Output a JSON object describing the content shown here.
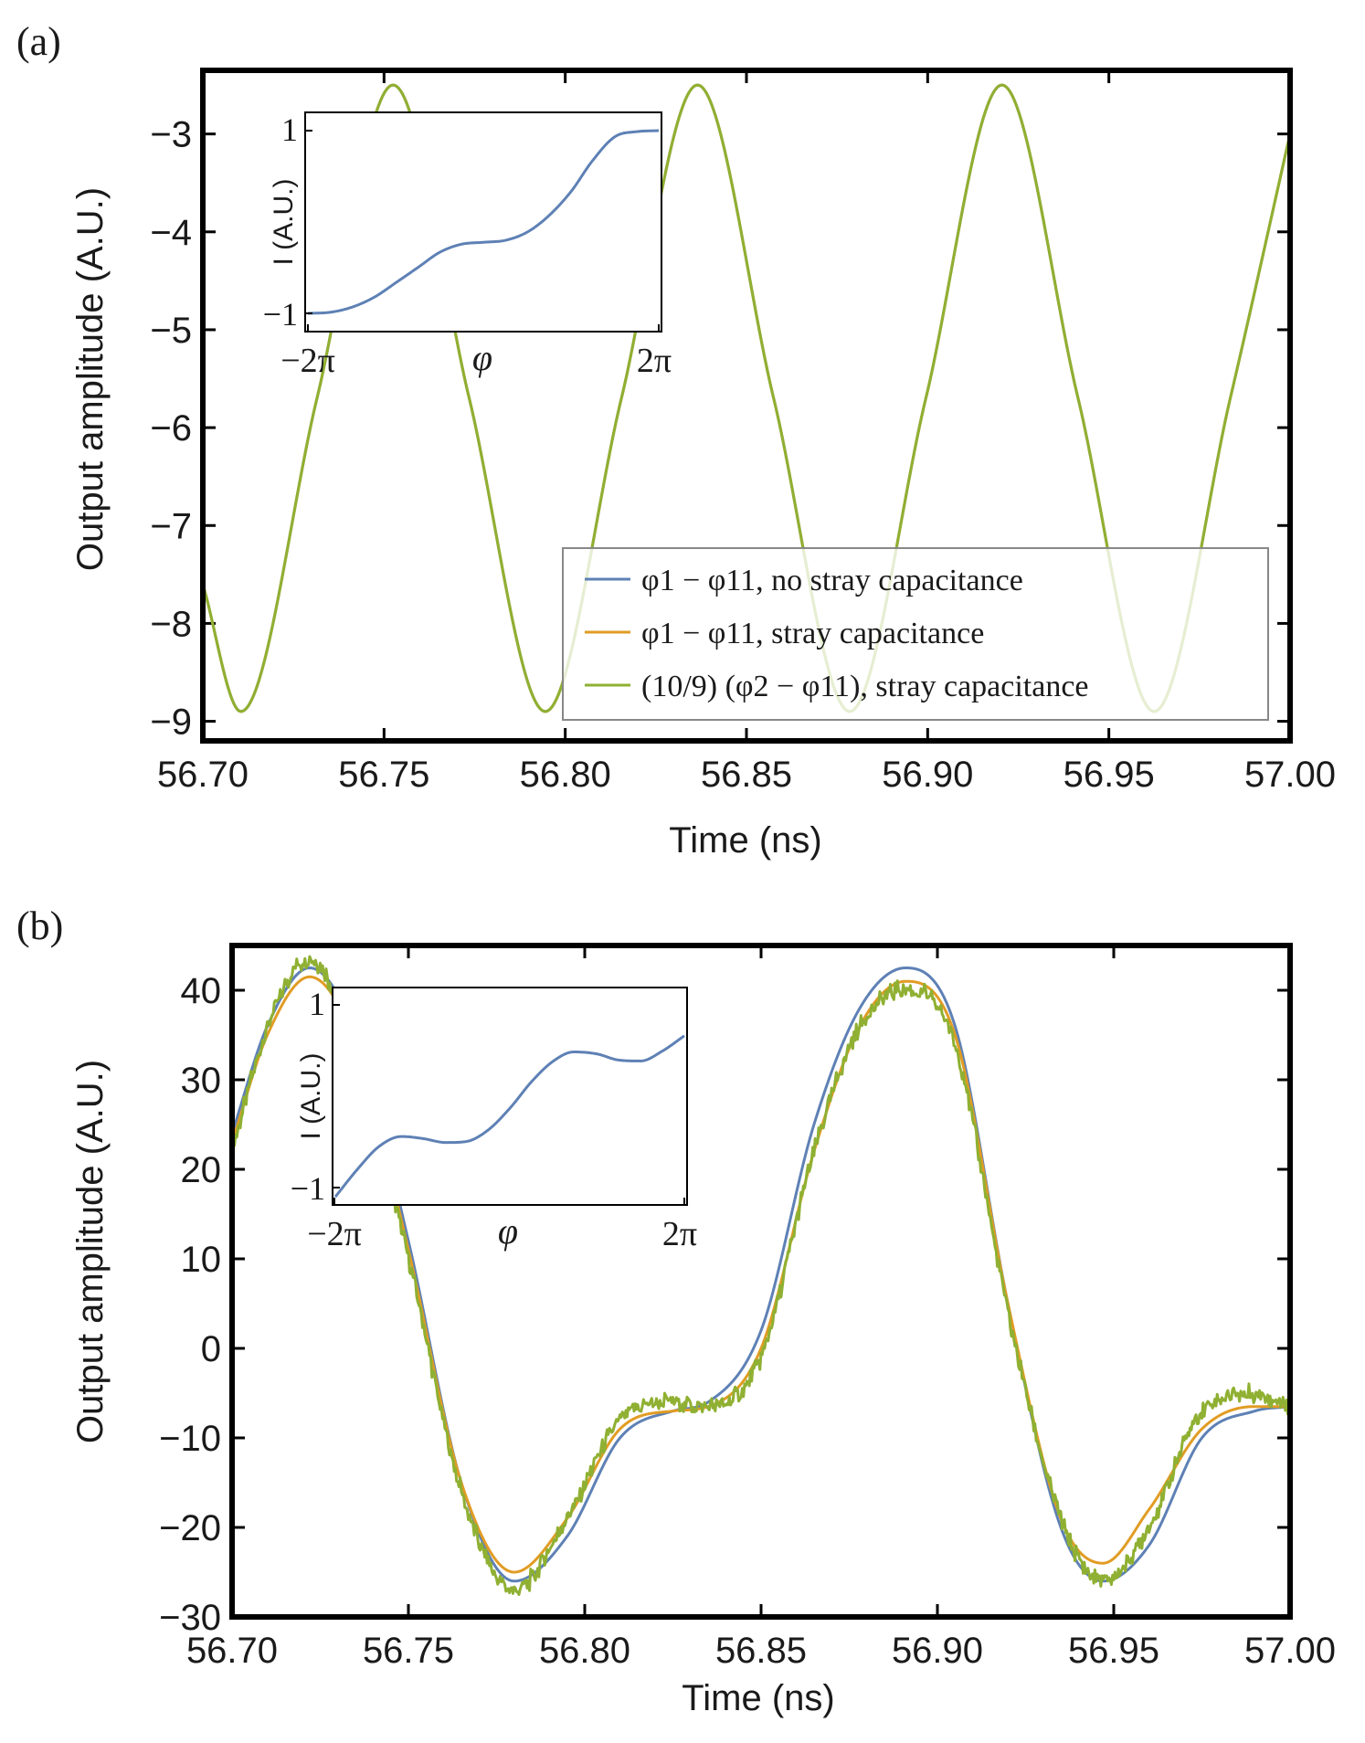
{
  "chart_data": [
    {
      "panel_label": "(a)",
      "type": "line",
      "title": "",
      "xlabel": "Time (ns)",
      "ylabel": "Output amplitude (A.U.)",
      "xlim": [
        56.7,
        57.0
      ],
      "ylim": [
        -9.2,
        -2.35
      ],
      "xticks": [
        56.7,
        56.75,
        56.8,
        56.85,
        56.9,
        56.95,
        57.0
      ],
      "xtick_labels": [
        "56.70",
        "56.75",
        "56.80",
        "56.85",
        "56.90",
        "56.95",
        "57.00"
      ],
      "yticks": [
        -9,
        -8,
        -7,
        -6,
        -5,
        -4,
        -3
      ],
      "ytick_labels": [
        "−9",
        "−8",
        "−7",
        "−6",
        "−5",
        "−4",
        "−3"
      ],
      "grid": false,
      "legend_position": "bottom-right",
      "series": [
        {
          "name": "φ1 − φ11, no stray capacitance",
          "color": "#5e81b5",
          "x": [
            56.7,
            56.7105,
            56.7315,
            56.7525,
            56.7735,
            56.7945,
            56.8155,
            56.8365,
            56.8575,
            56.8785,
            56.8995,
            56.9205,
            56.9415,
            56.9625,
            56.9835,
            57.0
          ],
          "y": [
            -7.6,
            -8.9,
            -5.7,
            -2.5,
            -5.7,
            -8.9,
            -5.7,
            -2.5,
            -5.7,
            -8.9,
            -5.7,
            -2.5,
            -5.7,
            -8.9,
            -5.7,
            -3.0
          ]
        },
        {
          "name": "φ1 − φ11, stray capacitance",
          "color": "#e19c24",
          "x": [
            56.7,
            56.7105,
            56.7315,
            56.7525,
            56.7735,
            56.7945,
            56.8155,
            56.8365,
            56.8575,
            56.8785,
            56.8995,
            56.9205,
            56.9415,
            56.9625,
            56.9835,
            57.0
          ],
          "y": [
            -7.6,
            -8.9,
            -5.7,
            -2.5,
            -5.7,
            -8.9,
            -5.7,
            -2.5,
            -5.7,
            -8.9,
            -5.7,
            -2.5,
            -5.7,
            -8.9,
            -5.7,
            -3.0
          ]
        },
        {
          "name": "(10/9) (φ2 − φ11), stray capacitance",
          "color": "#8fb032",
          "x": [
            56.7,
            56.7105,
            56.7315,
            56.7525,
            56.7735,
            56.7945,
            56.8155,
            56.8365,
            56.8575,
            56.8785,
            56.8995,
            56.9205,
            56.9415,
            56.9625,
            56.9835,
            57.0
          ],
          "y": [
            -7.6,
            -8.9,
            -5.7,
            -2.5,
            -5.7,
            -8.9,
            -5.7,
            -2.5,
            -5.7,
            -8.9,
            -5.7,
            -2.5,
            -5.7,
            -8.9,
            -5.7,
            -3.0
          ]
        }
      ],
      "inset": {
        "xlabel": "φ",
        "ylabel": "I (A.U.)",
        "xlim": [
          -6.2832,
          6.2832
        ],
        "ylim": [
          -1.08,
          1.08
        ],
        "xtick_labels": [
          "−2π",
          "2π"
        ],
        "ytick_labels": [
          "1",
          "−1"
        ],
        "series": [
          {
            "name": "I(φ)",
            "color": "#5e81b5",
            "x": [
              -6.2832,
              -5.5,
              -4.7124,
              -3.9,
              -3.1416,
              -2.3,
              -1.5708,
              -0.8,
              0.0,
              0.8,
              1.5708,
              2.3,
              3.1416,
              3.9,
              4.7124,
              5.5,
              6.2832
            ],
            "y": [
              -0.9,
              -0.89,
              -0.84,
              -0.74,
              -0.6,
              -0.44,
              -0.3,
              -0.22,
              -0.2,
              -0.18,
              -0.1,
              0.05,
              0.3,
              0.6,
              0.84,
              0.89,
              0.9
            ]
          }
        ]
      }
    },
    {
      "panel_label": "(b)",
      "type": "line",
      "title": "",
      "xlabel": "Time (ns)",
      "ylabel": "Output amplitude (A.U.)",
      "xlim": [
        56.7,
        57.0
      ],
      "ylim": [
        -30,
        45
      ],
      "xticks": [
        56.7,
        56.75,
        56.8,
        56.85,
        56.9,
        56.95,
        57.0
      ],
      "xtick_labels": [
        "56.70",
        "56.75",
        "56.80",
        "56.85",
        "56.90",
        "56.95",
        "57.00"
      ],
      "yticks": [
        -30,
        -20,
        -10,
        0,
        10,
        20,
        30,
        40
      ],
      "ytick_labels": [
        "−30",
        "−20",
        "−10",
        "0",
        "10",
        "20",
        "30",
        "40"
      ],
      "grid": false,
      "series": [
        {
          "name": "φ1 − φ11, no stray capacitance",
          "color": "#5e81b5",
          "x": [
            56.7,
            56.71,
            56.722,
            56.735,
            56.75,
            56.765,
            56.78,
            56.795,
            56.81,
            56.825,
            56.835,
            56.85,
            56.865,
            56.878,
            56.891,
            56.905,
            56.92,
            56.935,
            56.947,
            56.96,
            56.975,
            56.99,
            57.0
          ],
          "y": [
            24,
            36,
            42.5,
            35,
            12,
            -15,
            -26,
            -21,
            -10,
            -7,
            -6,
            2,
            25,
            38,
            42.5,
            36,
            5,
            -20,
            -26,
            -22,
            -10,
            -7,
            -6.5
          ]
        },
        {
          "name": "φ1 − φ11, stray capacitance",
          "color": "#e19c24",
          "x": [
            56.7,
            56.71,
            56.722,
            56.735,
            56.75,
            56.765,
            56.78,
            56.795,
            56.81,
            56.825,
            56.835,
            56.85,
            56.865,
            56.878,
            56.891,
            56.905,
            56.92,
            56.935,
            56.947,
            56.96,
            56.975,
            56.99,
            57.0
          ],
          "y": [
            23,
            35,
            41.5,
            34,
            11,
            -15,
            -25,
            -19,
            -9,
            -7,
            -6.5,
            0,
            22,
            36,
            41,
            35,
            5,
            -19,
            -24,
            -18,
            -9,
            -6.5,
            -6.5
          ]
        },
        {
          "name": "(10/9) (φ2 − φ11), stray capacitance",
          "color": "#8fb032",
          "x": [
            56.7,
            56.71,
            56.722,
            56.735,
            56.75,
            56.765,
            56.78,
            56.795,
            56.81,
            56.825,
            56.835,
            56.85,
            56.865,
            56.878,
            56.891,
            56.905,
            56.92,
            56.935,
            56.947,
            56.96,
            56.975,
            56.99,
            57.0
          ],
          "y": [
            22,
            36,
            43.5,
            33,
            10,
            -16,
            -27,
            -19,
            -8,
            -6,
            -6.5,
            -1,
            22,
            36,
            40,
            34,
            4,
            -19,
            -26,
            -20,
            -7,
            -5,
            -6.5
          ]
        }
      ],
      "inset": {
        "xlabel": "φ",
        "ylabel": "I (A.U.)",
        "xlim": [
          -6.2832,
          6.2832
        ],
        "ylim": [
          -1.08,
          1.08
        ],
        "xtick_labels": [
          "−2π",
          "2π"
        ],
        "ytick_labels": [
          "1",
          "−1"
        ],
        "series": [
          {
            "name": "I(φ)",
            "color": "#5e81b5",
            "x": [
              -6.2832,
              -5.5,
              -4.7124,
              -3.9,
              -3.1416,
              -2.3,
              -1.5708,
              -0.8,
              0.0,
              0.8,
              1.5708,
              2.3,
              3.1416,
              3.9,
              4.7124,
              5.5,
              6.2832
            ],
            "y": [
              -1.0,
              -0.73,
              -0.5,
              -0.4,
              -0.42,
              -0.46,
              -0.45,
              -0.34,
              -0.12,
              0.15,
              0.35,
              0.44,
              0.42,
              0.36,
              0.35,
              0.45,
              0.6
            ]
          }
        ]
      }
    }
  ]
}
